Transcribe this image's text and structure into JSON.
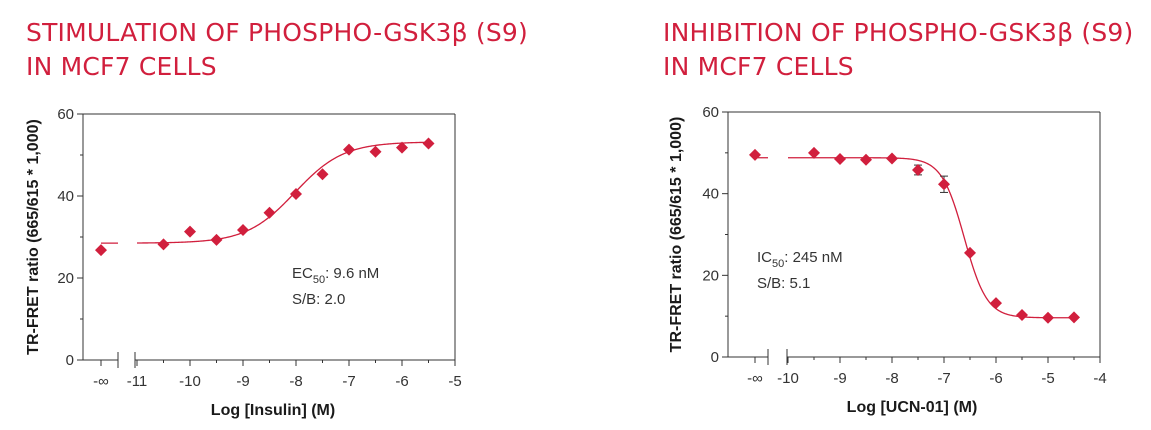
{
  "chart_data": [
    {
      "type": "scatter",
      "title_lines": [
        "STIMULATION OF PHOSPHO-GSK3β (S9)",
        "IN MCF7 CELLS"
      ],
      "xlabel": "Log [Insulin] (M)",
      "ylabel": "TR-FRET ratio (665/615 * 1,000)",
      "ylim": [
        0,
        60
      ],
      "xlim": [
        -11,
        -5
      ],
      "yticks": [
        0,
        20,
        40,
        60
      ],
      "xticks": [
        -11,
        -10,
        -9,
        -8,
        -7,
        -6,
        -5
      ],
      "xtick_labels": [
        "-11",
        "-10",
        "-9",
        "-8",
        "-7",
        "-6",
        "-5"
      ],
      "zero_label": "-∞",
      "zero_point": 26.8,
      "points": [
        {
          "x": -10.5,
          "y": 28.2
        },
        {
          "x": -10.0,
          "y": 31.3
        },
        {
          "x": -9.5,
          "y": 29.3
        },
        {
          "x": -9.0,
          "y": 31.7
        },
        {
          "x": -8.5,
          "y": 35.9
        },
        {
          "x": -8.0,
          "y": 40.5
        },
        {
          "x": -7.5,
          "y": 45.3
        },
        {
          "x": -7.0,
          "y": 51.3
        },
        {
          "x": -6.5,
          "y": 50.8
        },
        {
          "x": -6.0,
          "y": 51.8
        },
        {
          "x": -5.5,
          "y": 52.8
        }
      ],
      "curve": {
        "bottom": 28.5,
        "top": 53.2,
        "logEC50": -8.02,
        "hill": 0.95
      },
      "annotation": {
        "param_prefix": "EC",
        "param_sub": "50",
        "param_value": ": 9.6 nM",
        "sb": "S/B: 2.0"
      },
      "color": "#d11f3d"
    },
    {
      "type": "scatter",
      "title_lines": [
        "INHIBITION OF PHOSPHO-GSK3β (S9)",
        "IN MCF7 CELLS"
      ],
      "xlabel": "Log [UCN-01] (M)",
      "ylabel": "TR-FRET ratio (665/615 * 1,000)",
      "ylim": [
        0,
        60
      ],
      "xlim": [
        -10,
        -4
      ],
      "yticks": [
        0,
        20,
        40,
        60
      ],
      "xticks": [
        -10,
        -9,
        -8,
        -7,
        -6,
        -5,
        -4
      ],
      "xtick_labels": [
        "-10",
        "-9",
        "-8",
        "-7",
        "-6",
        "-5",
        "-4"
      ],
      "zero_label": "-∞",
      "zero_point": 49.5,
      "points": [
        {
          "x": -9.5,
          "y": 50.0
        },
        {
          "x": -9.0,
          "y": 48.5
        },
        {
          "x": -8.5,
          "y": 48.3
        },
        {
          "x": -8.0,
          "y": 48.6
        },
        {
          "x": -7.5,
          "y": 45.8,
          "err": 1.2
        },
        {
          "x": -7.0,
          "y": 42.3,
          "err": 2.0
        },
        {
          "x": -6.5,
          "y": 25.5
        },
        {
          "x": -6.0,
          "y": 13.2
        },
        {
          "x": -5.5,
          "y": 10.3
        },
        {
          "x": -5.0,
          "y": 9.6
        },
        {
          "x": -4.5,
          "y": 9.7
        }
      ],
      "curve": {
        "bottom": 9.6,
        "top": 48.8,
        "logEC50": -6.61,
        "hill": -2.0
      },
      "annotation": {
        "param_prefix": "IC",
        "param_sub": "50",
        "param_value": ": 245 nM",
        "sb": "S/B: 5.1"
      },
      "color": "#d11f3d"
    }
  ]
}
